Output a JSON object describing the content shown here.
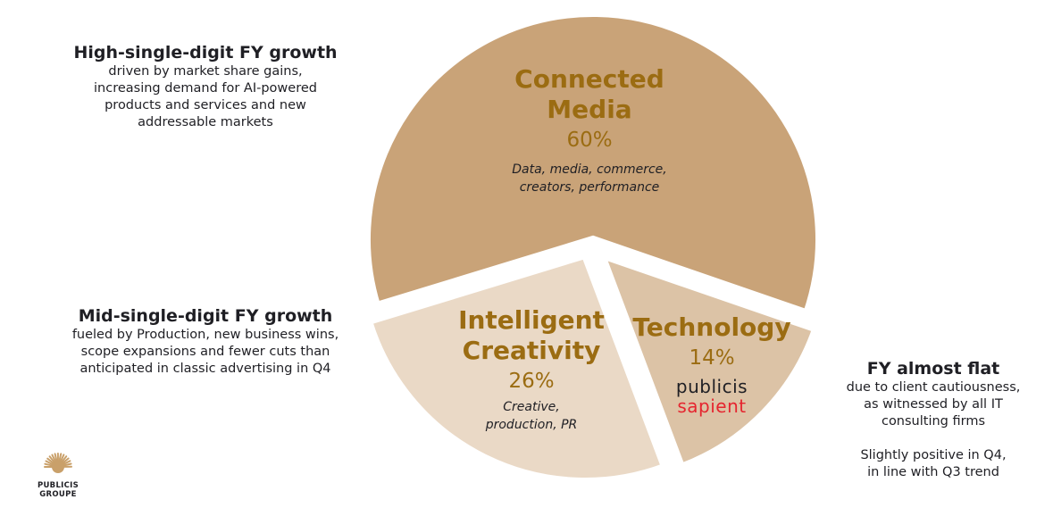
{
  "chart_data": {
    "type": "pie",
    "slices": [
      {
        "name": "Connected Media",
        "value": 60,
        "label": "60%",
        "description": "Data, media, commerce, creators, performance",
        "color": "#c9a378"
      },
      {
        "name": "Technology",
        "value": 14,
        "label": "14%",
        "color": "#dcc3a6",
        "brand_line1": "publicis",
        "brand_line2": "sapient"
      },
      {
        "name": "Intelligent Creativity",
        "value": 26,
        "label": "26%",
        "description": "Creative, production, PR",
        "color": "#ead9c6"
      }
    ]
  },
  "notes": {
    "connected": {
      "head": "High-single-digit FY growth",
      "lines": [
        "driven by market share gains,",
        "increasing demand for AI-powered",
        "products and services and new",
        "addressable markets"
      ]
    },
    "creativity": {
      "head": "Mid-single-digit FY growth",
      "lines": [
        "fueled by Production, new business wins,",
        "scope expansions and fewer cuts than",
        "anticipated in classic advertising in Q4"
      ]
    },
    "technology": {
      "head": "FY almost flat",
      "lines": [
        "due to client cautiousness,",
        "as witnessed by all IT",
        "consulting firms",
        "",
        "Slightly positive in Q4,",
        "in line with Q3 trend"
      ]
    }
  },
  "labels": {
    "connected": {
      "name1": "Connected",
      "name2": "Media",
      "desc1": "Data, media, commerce,",
      "desc2": "creators, performance"
    },
    "creativity": {
      "name1": "Intelligent",
      "name2": "Creativity",
      "desc1": "Creative,",
      "desc2": "production, PR"
    },
    "technology": {
      "name1": "Technology"
    }
  },
  "logo": {
    "line1": "PUBLICIS",
    "line2": "GROUPE",
    "color": "#c9a06a"
  }
}
